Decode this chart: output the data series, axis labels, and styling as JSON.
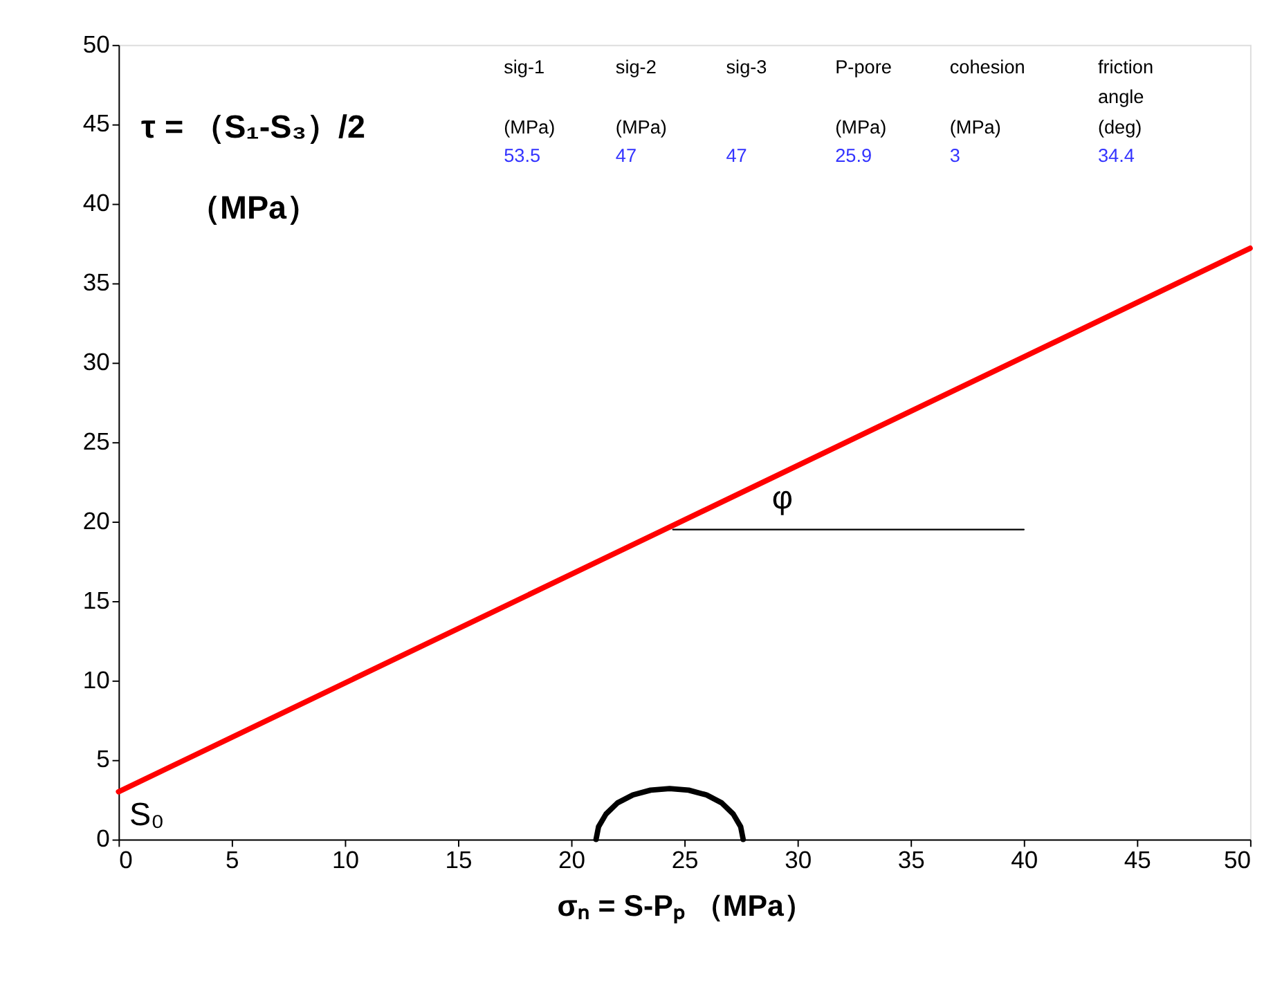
{
  "chart_data": {
    "type": "line",
    "xlabel": "σₙ = S-Pₚ （MPa）",
    "ylabel": "τ = （S₁-S₃）/2\n（MPa）",
    "xlim": [
      0,
      50
    ],
    "xticks": [
      0,
      5,
      10,
      15,
      20,
      25,
      30,
      35,
      40,
      45,
      50
    ],
    "ylim": [
      0,
      50
    ],
    "yticks": [
      0,
      5,
      10,
      15,
      20,
      25,
      30,
      35,
      40,
      45,
      50
    ],
    "grid": false,
    "marker": "none",
    "line_style": "solid",
    "series": [
      {
        "color": "#ff0000",
        "x": [
          0,
          50
        ],
        "values": [
          3,
          37.2
        ]
      },
      {
        "color": "#000000",
        "x": [
          27.6,
          27.49,
          27.16,
          26.65,
          25.98,
          25.19,
          24.35,
          23.51,
          22.73,
          22.05,
          21.54,
          21.21,
          21.1
        ],
        "values": [
          0,
          0.8,
          1.6,
          2.3,
          2.8,
          3.1,
          3.2,
          3.1,
          2.8,
          2.3,
          1.6,
          0.8,
          0
        ]
      },
      {
        "color": "#000000",
        "x": [
          24.5,
          40
        ],
        "values": [
          19.5,
          19.5
        ]
      }
    ],
    "annotations": [
      "sig-1",
      "sig-2",
      "sig-3",
      "P-pore",
      "cohesion",
      "friction\nangle",
      "(MPa)",
      "(MPa)",
      "(MPa)",
      "(MPa)",
      "(deg)",
      "53.5",
      "47",
      "47",
      "25.9",
      "3",
      "34.4",
      {
        "text": "S₀",
        "x": 0,
        "y": 3
      },
      "φ"
    ]
  }
}
